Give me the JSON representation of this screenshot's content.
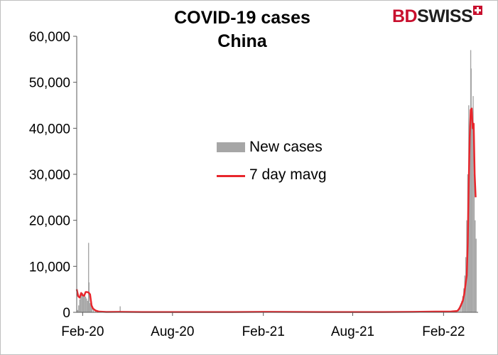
{
  "title_line1": "COVID-19 cases",
  "title_line2": "China",
  "logo": {
    "part1": "BD",
    "part2": "SWISS"
  },
  "chart_data": {
    "type": "bar",
    "ylim": [
      0,
      60000
    ],
    "yticks": [
      0,
      10000,
      20000,
      30000,
      40000,
      50000,
      60000
    ],
    "ytick_labels": [
      "0",
      "10,000",
      "20,000",
      "30,000",
      "40,000",
      "50,000",
      "60,000"
    ],
    "xlim": [
      "2020-01-20",
      "2022-04-12"
    ],
    "xticks": [
      "2020-02-01",
      "2020-08-01",
      "2021-02-01",
      "2021-08-01",
      "2022-02-01"
    ],
    "xtick_labels": [
      "Feb-20",
      "Aug-20",
      "Feb-21",
      "Aug-21",
      "Feb-22"
    ],
    "grid": false,
    "legend_position": "center",
    "colors": {
      "new_cases": "#a6a6a6",
      "mavg": "#e8262c"
    },
    "series": [
      {
        "name": "New cases",
        "kind": "bar",
        "points": [
          [
            "2020-01-22",
            500
          ],
          [
            "2020-01-24",
            1500
          ],
          [
            "2020-01-26",
            2800
          ],
          [
            "2020-01-28",
            3700
          ],
          [
            "2020-01-30",
            3900
          ],
          [
            "2020-02-01",
            4200
          ],
          [
            "2020-02-03",
            3900
          ],
          [
            "2020-02-05",
            3700
          ],
          [
            "2020-02-07",
            3400
          ],
          [
            "2020-02-09",
            3000
          ],
          [
            "2020-02-11",
            2500
          ],
          [
            "2020-02-13",
            15100
          ],
          [
            "2020-02-14",
            6500
          ],
          [
            "2020-02-16",
            2000
          ],
          [
            "2020-02-18",
            1800
          ],
          [
            "2020-02-20",
            900
          ],
          [
            "2020-02-23",
            500
          ],
          [
            "2020-02-27",
            400
          ],
          [
            "2020-03-02",
            200
          ],
          [
            "2020-03-10",
            50
          ],
          [
            "2020-04-17",
            1300
          ],
          [
            "2022-02-20",
            200
          ],
          [
            "2022-02-28",
            400
          ],
          [
            "2022-03-04",
            1000
          ],
          [
            "2022-03-07",
            1500
          ],
          [
            "2022-03-10",
            2500
          ],
          [
            "2022-03-12",
            3500
          ],
          [
            "2022-03-14",
            5200
          ],
          [
            "2022-03-16",
            8000
          ],
          [
            "2022-03-18",
            12000
          ],
          [
            "2022-03-20",
            20000
          ],
          [
            "2022-03-22",
            30000
          ],
          [
            "2022-03-24",
            45000
          ],
          [
            "2022-03-26",
            34000
          ],
          [
            "2022-03-28",
            57000
          ],
          [
            "2022-03-29",
            53000
          ],
          [
            "2022-03-31",
            40000
          ],
          [
            "2022-04-02",
            47000
          ],
          [
            "2022-04-04",
            30000
          ],
          [
            "2022-04-06",
            20000
          ],
          [
            "2022-04-08",
            16000
          ]
        ]
      },
      {
        "name": "7 day mavg",
        "kind": "line",
        "points": [
          [
            "2020-01-20",
            5000
          ],
          [
            "2020-01-23",
            3500
          ],
          [
            "2020-01-26",
            3200
          ],
          [
            "2020-01-29",
            4200
          ],
          [
            "2020-02-01",
            3700
          ],
          [
            "2020-02-04",
            3600
          ],
          [
            "2020-02-07",
            4400
          ],
          [
            "2020-02-10",
            4400
          ],
          [
            "2020-02-13",
            4300
          ],
          [
            "2020-02-16",
            3900
          ],
          [
            "2020-02-19",
            1500
          ],
          [
            "2020-02-22",
            800
          ],
          [
            "2020-02-27",
            400
          ],
          [
            "2020-03-05",
            150
          ],
          [
            "2020-03-20",
            80
          ],
          [
            "2020-04-15",
            100
          ],
          [
            "2020-06-01",
            50
          ],
          [
            "2020-08-01",
            50
          ],
          [
            "2020-12-01",
            50
          ],
          [
            "2021-02-01",
            100
          ],
          [
            "2021-06-01",
            50
          ],
          [
            "2021-10-01",
            50
          ],
          [
            "2021-12-01",
            100
          ],
          [
            "2022-01-15",
            150
          ],
          [
            "2022-02-15",
            150
          ],
          [
            "2022-03-01",
            300
          ],
          [
            "2022-03-05",
            800
          ],
          [
            "2022-03-08",
            1500
          ],
          [
            "2022-03-12",
            2500
          ],
          [
            "2022-03-15",
            4000
          ],
          [
            "2022-03-18",
            6500
          ],
          [
            "2022-03-20",
            8000
          ],
          [
            "2022-03-22",
            15000
          ],
          [
            "2022-03-24",
            28000
          ],
          [
            "2022-03-26",
            38000
          ],
          [
            "2022-03-28",
            44000
          ],
          [
            "2022-03-30",
            44300
          ],
          [
            "2022-04-01",
            40000
          ],
          [
            "2022-04-03",
            41000
          ],
          [
            "2022-04-05",
            30000
          ],
          [
            "2022-04-07",
            25000
          ]
        ]
      }
    ]
  }
}
